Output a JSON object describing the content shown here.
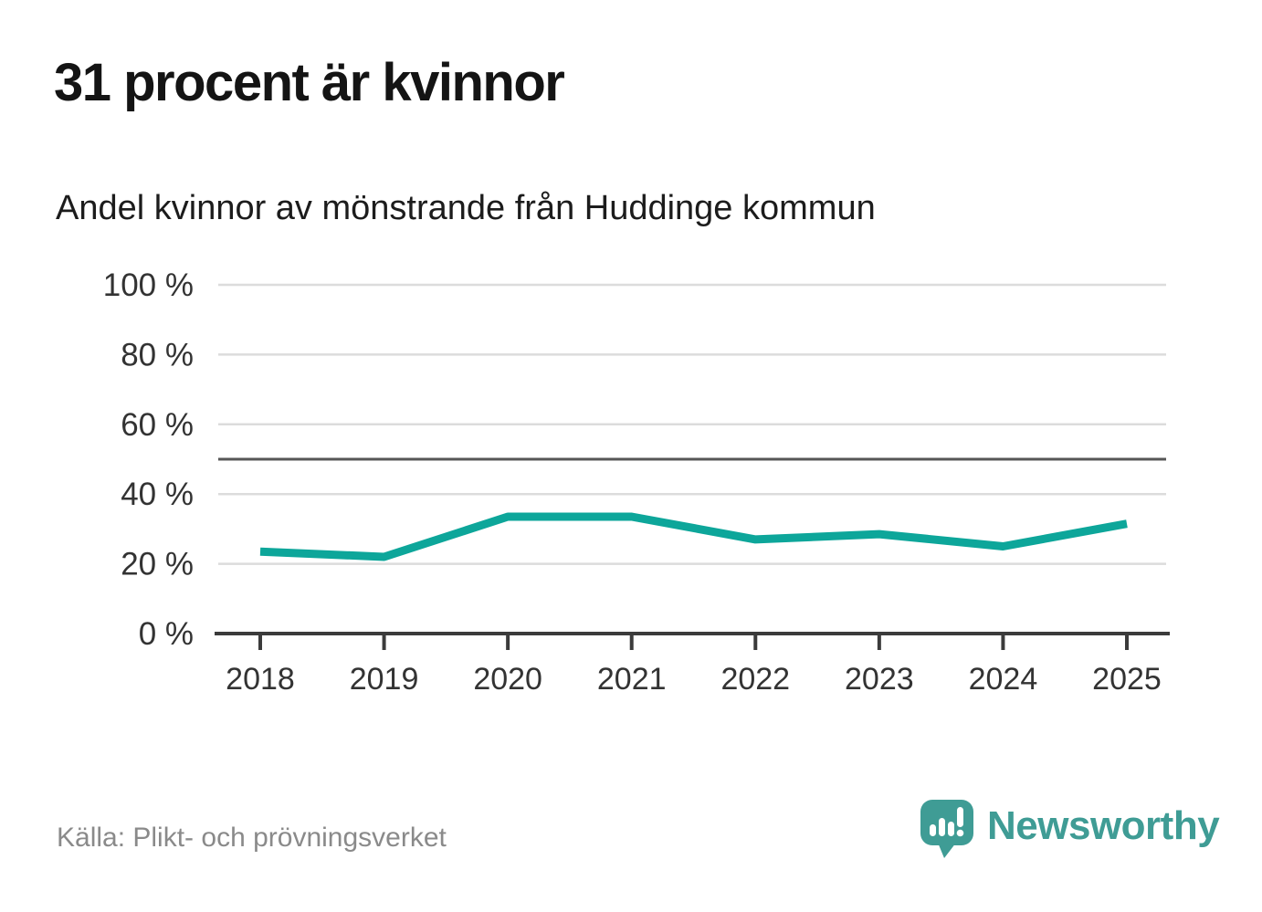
{
  "header": {
    "title": "31 procent är kvinnor",
    "subtitle": "Andel kvinnor av mönstrande från Huddinge kommun"
  },
  "chart_data": {
    "type": "line",
    "title": "31 procent är kvinnor",
    "subtitle": "Andel kvinnor av mönstrande från Huddinge kommun",
    "x": [
      "2018",
      "2019",
      "2020",
      "2021",
      "2022",
      "2023",
      "2024",
      "2025"
    ],
    "series": [
      {
        "name": "Andel kvinnor av mönstrande",
        "values": [
          23.5,
          22,
          33.5,
          33.5,
          27,
          28.5,
          25,
          31.5
        ]
      }
    ],
    "ylim": [
      0,
      100
    ],
    "yticks": [
      {
        "value": 0,
        "label": "0 %"
      },
      {
        "value": 20,
        "label": "20 %"
      },
      {
        "value": 40,
        "label": "40 %"
      },
      {
        "value": 60,
        "label": "60 %"
      },
      {
        "value": 80,
        "label": "80 %"
      },
      {
        "value": 100,
        "label": "100 %"
      }
    ],
    "reference_line": {
      "value": 50
    },
    "grid": "horizontal",
    "legend": "none",
    "line_color": "#0da69a",
    "grid_color": "#dcdcdc",
    "reference_color": "#565656",
    "axis_color": "#3b3b3b",
    "tick_label_color": "#333333"
  },
  "footer": {
    "source": "Källa: Plikt- och prövningsverket",
    "brand_name": "Newsworthy",
    "brand_color": "#3f9c95"
  }
}
